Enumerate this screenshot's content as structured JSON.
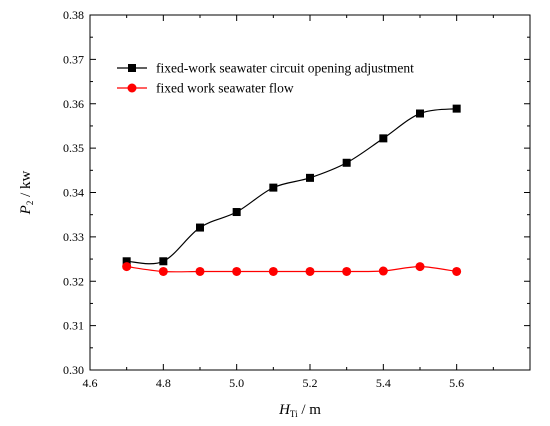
{
  "chart_data": {
    "type": "line",
    "xlabel": {
      "main": "H",
      "sub": "Ti",
      "unit": " / m"
    },
    "ylabel": {
      "main": "P",
      "sub": "2",
      "unit": " / kw"
    },
    "xlim": [
      4.6,
      5.8
    ],
    "ylim": [
      0.3,
      0.38
    ],
    "x_ticks": [
      "4.6",
      "4.8",
      "5.0",
      "5.2",
      "5.4",
      "5.6"
    ],
    "y_ticks": [
      "0.30",
      "0.31",
      "0.32",
      "0.33",
      "0.34",
      "0.35",
      "0.36",
      "0.37",
      "0.38"
    ],
    "grid": false,
    "legend_position": "top-left",
    "series": [
      {
        "name": "fixed-work seawater circuit opening adjustment",
        "color": "#000000",
        "marker": "square",
        "x": [
          4.7,
          4.8,
          4.9,
          5.0,
          5.1,
          5.2,
          5.3,
          5.4,
          5.5,
          5.6
        ],
        "y": [
          0.3245,
          0.3245,
          0.3321,
          0.3356,
          0.3411,
          0.3433,
          0.3467,
          0.3522,
          0.3578,
          0.3589
        ]
      },
      {
        "name": "fixed work seawater flow",
        "color": "#ff0000",
        "marker": "circle",
        "x": [
          4.7,
          4.8,
          4.9,
          5.0,
          5.1,
          5.2,
          5.3,
          5.4,
          5.5,
          5.6
        ],
        "y": [
          0.3233,
          0.3222,
          0.3222,
          0.3222,
          0.3222,
          0.3222,
          0.3222,
          0.3223,
          0.3233,
          0.3222
        ]
      }
    ]
  }
}
